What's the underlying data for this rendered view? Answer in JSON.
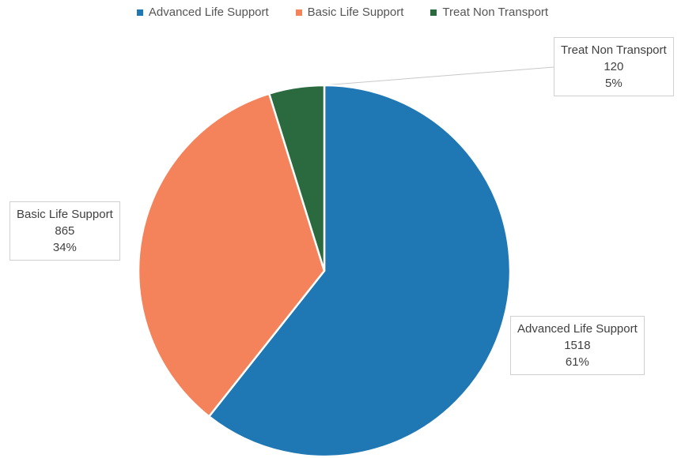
{
  "chart_data": {
    "type": "pie",
    "title": "",
    "legend_position": "top",
    "start_angle_deg": 0,
    "direction": "clockwise",
    "slices": [
      {
        "name": "Advanced Life Support",
        "value": 1518,
        "percent": "61%",
        "color": "#1f77b4"
      },
      {
        "name": "Basic Life Support",
        "value": 865,
        "percent": "34%",
        "color": "#f4825a"
      },
      {
        "name": "Treat Non Transport",
        "value": 120,
        "percent": "5%",
        "color": "#2a6a3e"
      }
    ]
  },
  "legend": [
    {
      "label": "Advanced Life Support"
    },
    {
      "label": "Basic Life Support"
    },
    {
      "label": "Treat Non Transport"
    }
  ],
  "labels": [
    {
      "name": "Advanced Life Support",
      "value": "1518",
      "percent": "61%"
    },
    {
      "name": "Basic Life Support",
      "value": "865",
      "percent": "34%"
    },
    {
      "name": "Treat Non Transport",
      "value": "120",
      "percent": "5%"
    }
  ]
}
